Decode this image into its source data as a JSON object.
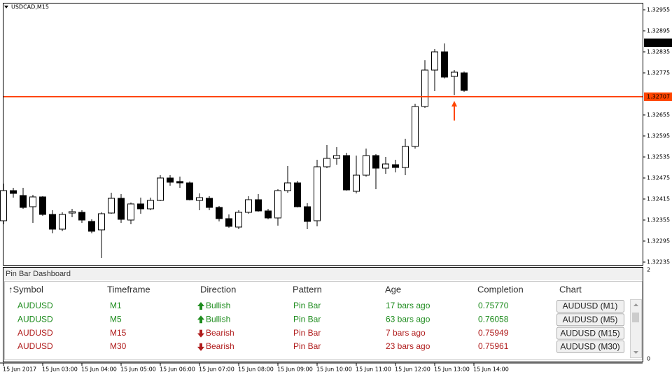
{
  "chart": {
    "title": "USDCAD,M15",
    "ylim": [
      1.32227,
      1.32975
    ],
    "yticks": [
      1.32955,
      1.32895,
      1.32835,
      1.32775,
      1.32655,
      1.32595,
      1.32535,
      1.32475,
      1.32415,
      1.32355,
      1.32295,
      1.32235
    ],
    "bull_color": "#ffffff",
    "bear_color": "#000000",
    "candles": [
      [
        1.32353,
        1.32459,
        1.32343,
        1.32439
      ],
      [
        1.32439,
        1.32447,
        1.32419,
        1.32431
      ],
      [
        1.32425,
        1.32447,
        1.32387,
        1.32391
      ],
      [
        1.32393,
        1.32427,
        1.32347,
        1.32421
      ],
      [
        1.32421,
        1.32423,
        1.32367,
        1.32371
      ],
      [
        1.32371,
        1.32383,
        1.32317,
        1.32329
      ],
      [
        1.32329,
        1.32377,
        1.32323,
        1.32371
      ],
      [
        1.32375,
        1.32387,
        1.32363,
        1.32379
      ],
      [
        1.32377,
        1.32383,
        1.32347,
        1.32355
      ],
      [
        1.32351,
        1.32357,
        1.32317,
        1.32323
      ],
      [
        1.32327,
        1.32377,
        1.32247,
        1.32373
      ],
      [
        1.32375,
        1.32433,
        1.32373,
        1.32417
      ],
      [
        1.32417,
        1.32429,
        1.32347,
        1.32357
      ],
      [
        1.32355,
        1.32405,
        1.32343,
        1.32401
      ],
      [
        1.32401,
        1.32419,
        1.32373,
        1.32387
      ],
      [
        1.32387,
        1.32419,
        1.32383,
        1.32411
      ],
      [
        1.32411,
        1.32483,
        1.32409,
        1.32475
      ],
      [
        1.32475,
        1.32483,
        1.32453,
        1.32463
      ],
      [
        1.32465,
        1.32479,
        1.32447,
        1.32461
      ],
      [
        1.32461,
        1.32465,
        1.32411,
        1.32413
      ],
      [
        1.32411,
        1.32431,
        1.32383,
        1.32419
      ],
      [
        1.32417,
        1.32423,
        1.32383,
        1.32391
      ],
      [
        1.32391,
        1.32395,
        1.32351,
        1.32359
      ],
      [
        1.32359,
        1.32371,
        1.32333,
        1.32337
      ],
      [
        1.32335,
        1.32383,
        1.32329,
        1.32377
      ],
      [
        1.32377,
        1.32423,
        1.32373,
        1.32413
      ],
      [
        1.32413,
        1.32429,
        1.32379,
        1.32381
      ],
      [
        1.32381,
        1.32387,
        1.32357,
        1.32361
      ],
      [
        1.32361,
        1.32443,
        1.32339,
        1.32439
      ],
      [
        1.32439,
        1.32509,
        1.32433,
        1.32461
      ],
      [
        1.32461,
        1.32467,
        1.32391,
        1.32393
      ],
      [
        1.32393,
        1.32403,
        1.32329,
        1.32351
      ],
      [
        1.32353,
        1.32527,
        1.32337,
        1.32507
      ],
      [
        1.32507,
        1.32569,
        1.32503,
        1.32531
      ],
      [
        1.32531,
        1.32563,
        1.32513,
        1.32539
      ],
      [
        1.32539,
        1.32547,
        1.32439,
        1.32441
      ],
      [
        1.32437,
        1.32539,
        1.32431,
        1.32483
      ],
      [
        1.32483,
        1.32559,
        1.32479,
        1.32539
      ],
      [
        1.32539,
        1.32543,
        1.32443,
        1.32503
      ],
      [
        1.32503,
        1.32535,
        1.32487,
        1.32515
      ],
      [
        1.32513,
        1.32527,
        1.32491,
        1.32505
      ],
      [
        1.32505,
        1.32587,
        1.32483,
        1.32565
      ],
      [
        1.32565,
        1.32687,
        1.32559,
        1.32679
      ],
      [
        1.32679,
        1.32811,
        1.32675,
        1.32783
      ],
      [
        1.32783,
        1.32843,
        1.32723,
        1.32835
      ],
      [
        1.32835,
        1.32859,
        1.32759,
        1.32763
      ],
      [
        1.32765,
        1.32783,
        1.32711,
        1.32777
      ],
      [
        1.32775,
        1.32779,
        1.32721,
        1.32725
      ]
    ],
    "level_line": {
      "value": 1.32707,
      "color": "#ff4500"
    },
    "current_price": 1.32861,
    "signal_arrow": {
      "candle": 46,
      "color": "#ff4500"
    },
    "time_labels": [
      "15 Jun 2017",
      "15 Jun 03:00",
      "15 Jun 04:00",
      "15 Jun 05:00",
      "15 Jun 06:00",
      "15 Jun 07:00",
      "15 Jun 08:00",
      "15 Jun 09:00",
      "15 Jun 10:00",
      "15 Jun 11:00",
      "15 Jun 12:00",
      "15 Jun 13:00",
      "15 Jun 14:00"
    ]
  },
  "indicator": {
    "title": "Pin Bar Dashboard",
    "ylim": [
      0,
      2
    ],
    "yticks": [
      2,
      0
    ]
  },
  "dashboard": {
    "columns": [
      "↑Symbol",
      "Timeframe",
      "Direction",
      "Pattern",
      "Age",
      "Completion",
      "Chart"
    ],
    "rows": [
      {
        "symbol": "AUDUSD",
        "timeframe": "M1",
        "direction": "Bullish",
        "pattern": "Pin Bar",
        "age": "17 bars ago",
        "completion": "0.75770",
        "chart": "AUDUSD (M1)",
        "color": "#1e8c1e"
      },
      {
        "symbol": "AUDUSD",
        "timeframe": "M5",
        "direction": "Bullish",
        "pattern": "Pin Bar",
        "age": "63 bars ago",
        "completion": "0.76058",
        "chart": "AUDUSD (M5)",
        "color": "#1e8c1e"
      },
      {
        "symbol": "AUDUSD",
        "timeframe": "M15",
        "direction": "Bearish",
        "pattern": "Pin Bar",
        "age": "7 bars ago",
        "completion": "0.75949",
        "chart": "AUDUSD (M15)",
        "color": "#b01c1c"
      },
      {
        "symbol": "AUDUSD",
        "timeframe": "M30",
        "direction": "Bearish",
        "pattern": "Pin Bar",
        "age": "23 bars ago",
        "completion": "0.75961",
        "chart": "AUDUSD (M30)",
        "color": "#b01c1c"
      }
    ]
  }
}
